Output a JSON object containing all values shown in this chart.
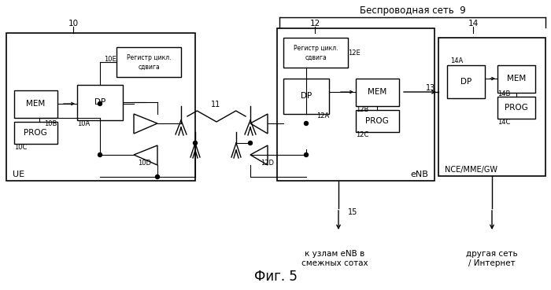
{
  "wireless_label": "Беспроводная сеть  9",
  "fig_caption": "Фиг. 5",
  "bg_color": "#ffffff",
  "bottom_label_enb": "к узлам eNB в\nсмежных сотах",
  "bottom_label_nce": "другая сеть\n/ Интернет",
  "label_UE": "UE",
  "label_eNB": "eNB",
  "label_NCE": "NCE/MME/GW"
}
